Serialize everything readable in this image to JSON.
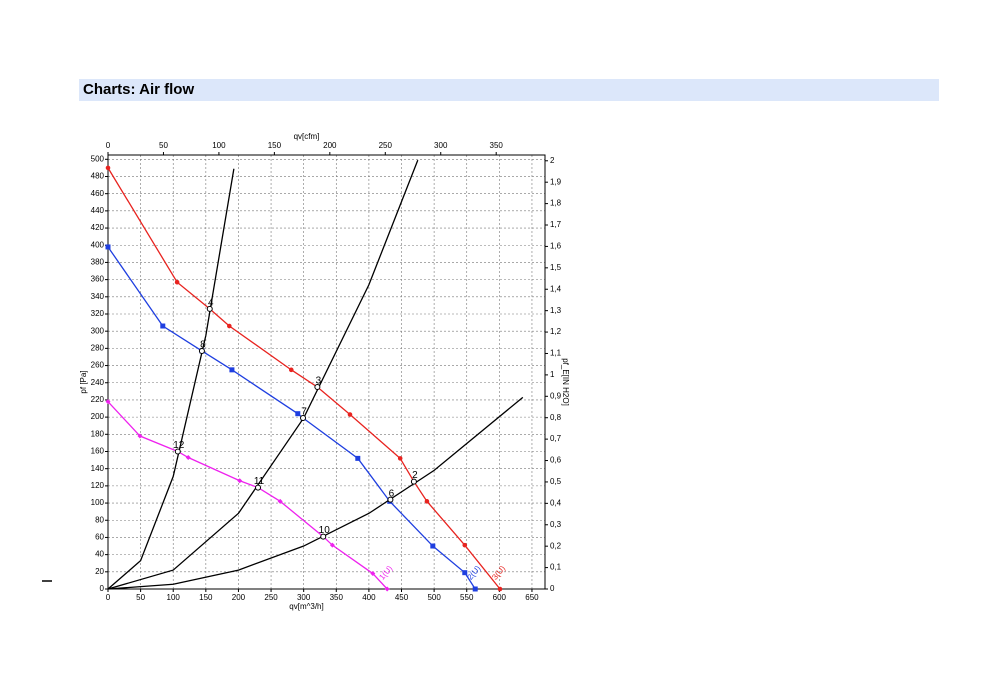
{
  "heading": "Charts: Air flow",
  "chart_data": {
    "type": "line",
    "x_label": "qv[m^3/h]",
    "y_label": "pf [Pa]",
    "x2_label": "qv[cfm]",
    "y2_label": "pf_E[IN H2O]",
    "xlim": [
      0,
      670
    ],
    "xticks": [
      0,
      50,
      100,
      150,
      200,
      250,
      300,
      350,
      400,
      450,
      500,
      550,
      600,
      650
    ],
    "x2lim": [
      0,
      394
    ],
    "x2ticks": [
      0,
      50,
      100,
      150,
      200,
      250,
      300,
      350
    ],
    "ylim": [
      0,
      505
    ],
    "yticks": [
      0,
      20,
      40,
      60,
      80,
      100,
      120,
      140,
      160,
      180,
      200,
      220,
      240,
      260,
      280,
      300,
      320,
      340,
      360,
      380,
      400,
      420,
      440,
      460,
      480,
      500
    ],
    "y2lim": [
      0,
      2.027
    ],
    "y2ticks": [
      0,
      {
        "value": 0.1,
        "label": "0,1"
      },
      {
        "value": 0.2,
        "label": "0,2"
      },
      {
        "value": 0.3,
        "label": "0,3"
      },
      {
        "value": 0.4,
        "label": "0,4"
      },
      {
        "value": 0.5,
        "label": "0,5"
      },
      {
        "value": 0.6,
        "label": "0,6"
      },
      {
        "value": 0.7,
        "label": "0,7"
      },
      {
        "value": 0.8,
        "label": "0,8"
      },
      {
        "value": 0.9,
        "label": "0,9"
      },
      1,
      {
        "value": 1.1,
        "label": "1,1"
      },
      {
        "value": 1.2,
        "label": "1,2"
      },
      {
        "value": 1.3,
        "label": "1,3"
      },
      {
        "value": 1.4,
        "label": "1,4"
      },
      {
        "value": 1.5,
        "label": "1,5"
      },
      {
        "value": 1.6,
        "label": "1,6"
      },
      {
        "value": 1.7,
        "label": "1,7"
      },
      {
        "value": 1.8,
        "label": "1,8"
      },
      {
        "value": 1.9,
        "label": "1,9"
      },
      2
    ],
    "grid": true,
    "series": [
      {
        "name": "3(U)",
        "color": "#e8231f",
        "marker": "circle",
        "x": [
          0,
          106,
          156,
          186,
          281,
          321,
          371,
          448,
          469,
          489,
          547,
          601
        ],
        "values": [
          490,
          357,
          326,
          306,
          255,
          235,
          203,
          152,
          125,
          102,
          51,
          0
        ]
      },
      {
        "name": "2(U)",
        "color": "#1f3fe0",
        "marker": "square",
        "x": [
          0,
          84,
          144,
          190,
          291,
          299,
          383,
          432,
          498,
          547,
          563
        ],
        "values": [
          398,
          306,
          277,
          255,
          204,
          199,
          152,
          102,
          50,
          19,
          0
        ]
      },
      {
        "name": "1(U)",
        "color": "#ee22ee",
        "marker": "diamond",
        "x": [
          0,
          49,
          107,
          123,
          202,
          230,
          264,
          330,
          344,
          406,
          428
        ],
        "values": [
          218,
          178,
          160,
          153,
          126,
          118,
          102,
          61,
          51,
          18,
          0
        ]
      },
      {
        "color": "#000000",
        "x": [
          0,
          50,
          100,
          150,
          193
        ],
        "values": [
          0,
          33,
          131,
          295,
          489
        ]
      },
      {
        "color": "#000000",
        "x": [
          0,
          100,
          200,
          300,
          400,
          475
        ],
        "values": [
          0,
          22,
          88,
          199,
          354,
          499
        ]
      },
      {
        "color": "#000000",
        "x": [
          0,
          100,
          200,
          300,
          400,
          500,
          636
        ],
        "values": [
          0,
          5.5,
          22,
          50,
          88,
          138,
          223
        ]
      }
    ],
    "annotations": [
      {
        "label": "4",
        "x": 156,
        "y": 326
      },
      {
        "label": "8",
        "x": 144,
        "y": 277
      },
      {
        "label": "12",
        "x": 107,
        "y": 160
      },
      {
        "label": "3",
        "x": 321,
        "y": 235
      },
      {
        "label": "7",
        "x": 299,
        "y": 199
      },
      {
        "label": "11",
        "x": 230,
        "y": 118
      },
      {
        "label": "2",
        "x": 469,
        "y": 125
      },
      {
        "label": "6",
        "x": 433,
        "y": 104
      },
      {
        "label": "10",
        "x": 330,
        "y": 61
      }
    ]
  }
}
